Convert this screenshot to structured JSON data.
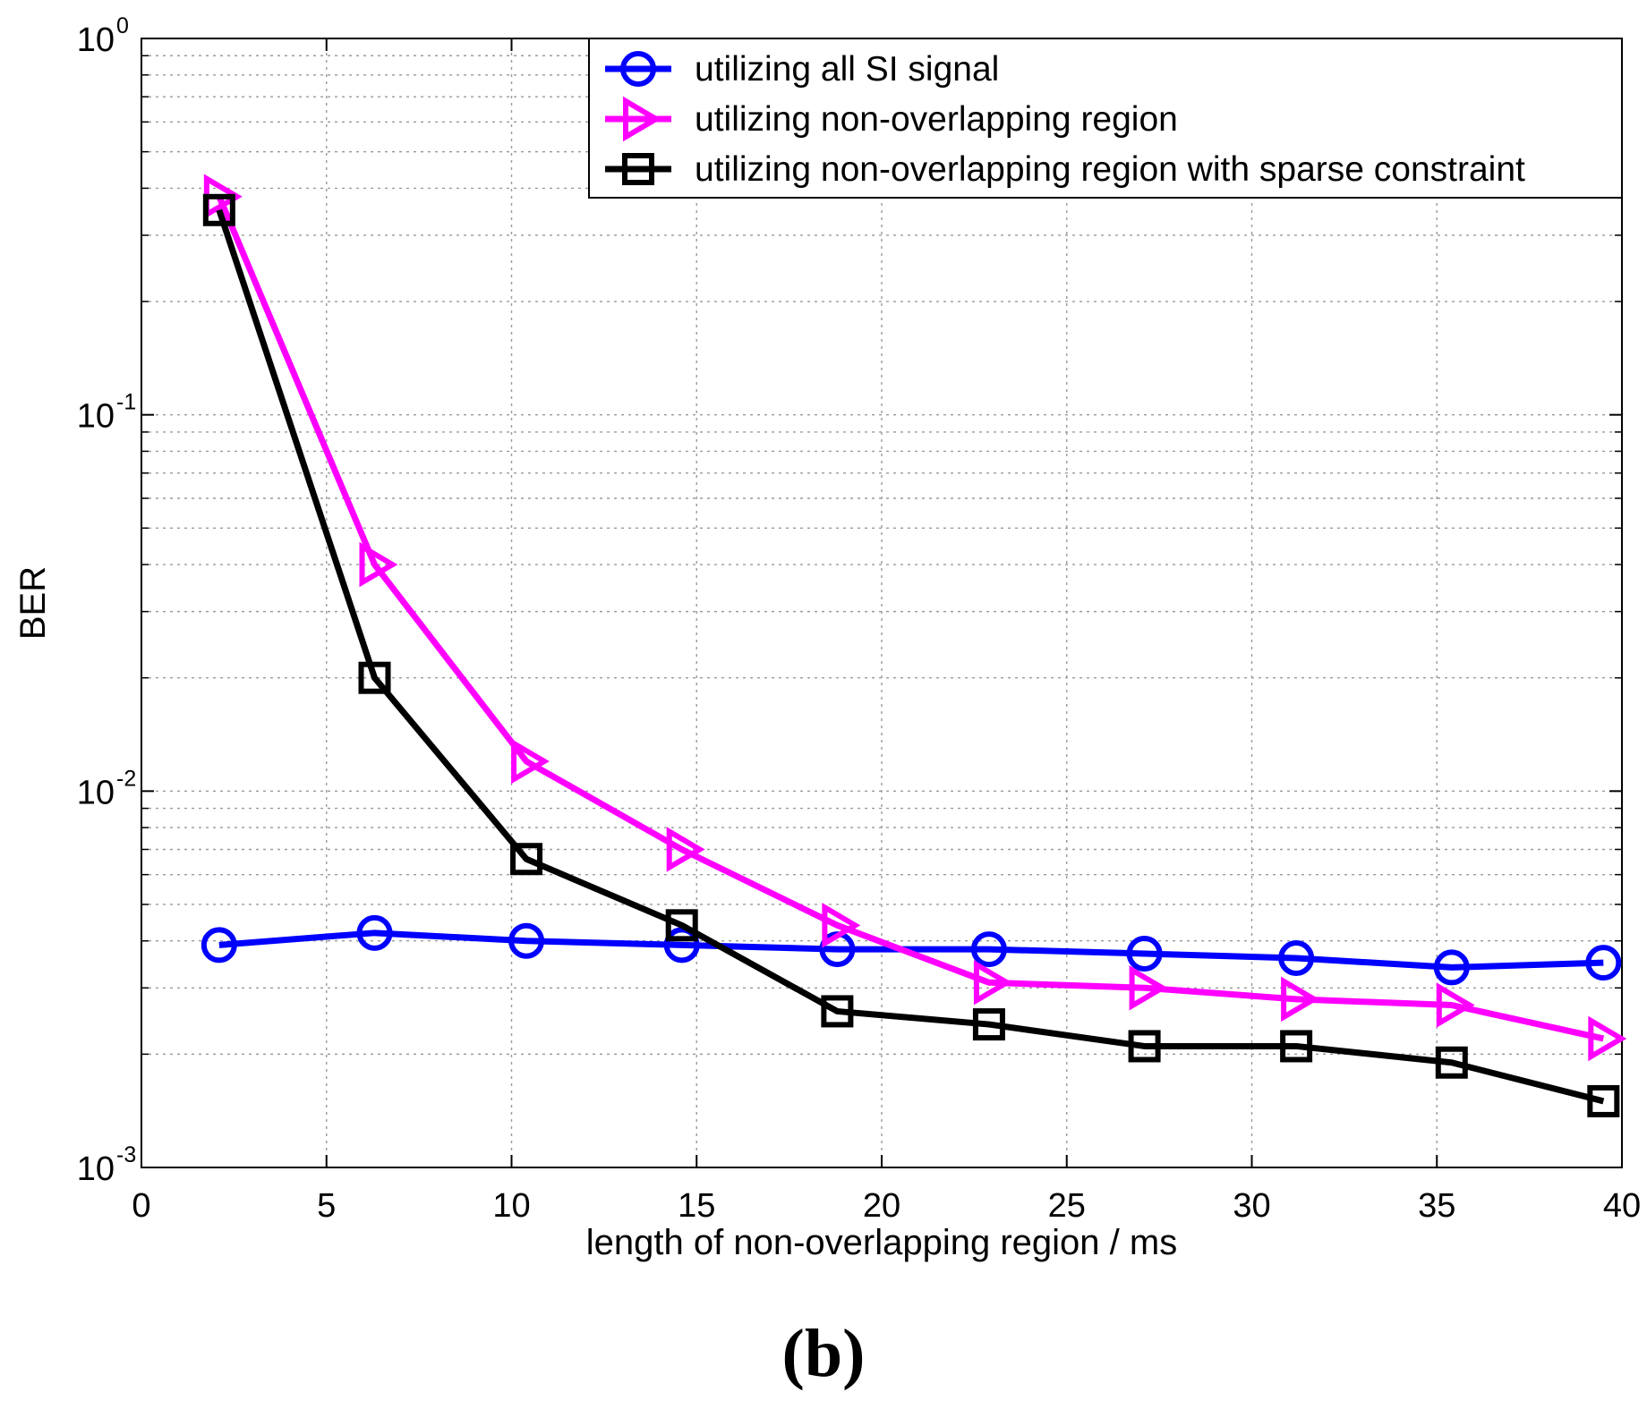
{
  "chart_data": {
    "type": "line",
    "title": "",
    "xlabel": "length of non-overlapping region / ms",
    "ylabel": "BER",
    "yscale": "log",
    "xlim": [
      0,
      40
    ],
    "ylim": [
      0.001,
      1
    ],
    "grid": true,
    "legend_position": "top-right",
    "xticks": [
      0,
      5,
      10,
      15,
      20,
      25,
      30,
      35,
      40
    ],
    "xtick_labels": [
      "0",
      "5",
      "10",
      "15",
      "20",
      "25",
      "30",
      "35",
      "40"
    ],
    "yticks": [
      {
        "value": 0.001,
        "base": "10",
        "exp": "-3"
      },
      {
        "value": 0.01,
        "base": "10",
        "exp": "-2"
      },
      {
        "value": 0.1,
        "base": "10",
        "exp": "-1"
      },
      {
        "value": 1,
        "base": "10",
        "exp": "0"
      }
    ],
    "x": [
      2.1,
      6.3,
      10.4,
      14.6,
      18.8,
      22.9,
      27.1,
      31.2,
      35.4,
      39.5
    ],
    "series": [
      {
        "name": "utilizing all SI signal",
        "color": "#0000ff",
        "marker": "circle",
        "values": [
          0.0039,
          0.0042,
          0.004,
          0.0039,
          0.0038,
          0.0038,
          0.0037,
          0.0036,
          0.0034,
          0.0035
        ]
      },
      {
        "name": "utilizing non-overlapping region",
        "color": "#ff00ff",
        "marker": "triangle-right",
        "values": [
          0.38,
          0.04,
          0.012,
          0.007,
          0.0044,
          0.0031,
          0.003,
          0.0028,
          0.0027,
          0.0022
        ]
      },
      {
        "name": "utilizing non-overlapping region with sparse constraint",
        "color": "#000000",
        "marker": "square",
        "values": [
          0.35,
          0.02,
          0.0066,
          0.0044,
          0.0026,
          0.0024,
          0.0021,
          0.0021,
          0.0019,
          0.0015
        ]
      }
    ]
  },
  "caption": "(b)"
}
